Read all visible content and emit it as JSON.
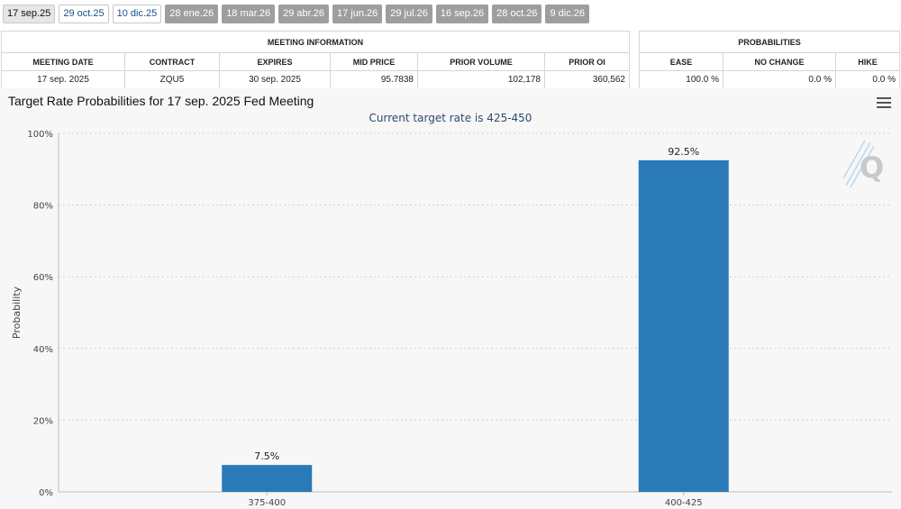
{
  "tabs": [
    {
      "label": "17 sep.25",
      "state": "active"
    },
    {
      "label": "29 oct.25",
      "state": "future"
    },
    {
      "label": "10 dic.25",
      "state": "future"
    },
    {
      "label": "28 ene.26",
      "state": "disabled"
    },
    {
      "label": "18 mar.26",
      "state": "disabled"
    },
    {
      "label": "29 abr.26",
      "state": "disabled"
    },
    {
      "label": "17 jun.26",
      "state": "disabled"
    },
    {
      "label": "29 jul.26",
      "state": "disabled"
    },
    {
      "label": "16 sep.26",
      "state": "disabled"
    },
    {
      "label": "28 oct.26",
      "state": "disabled"
    },
    {
      "label": "9 dic.26",
      "state": "disabled"
    }
  ],
  "meeting_info": {
    "title": "MEETING INFORMATION",
    "headers": [
      "MEETING DATE",
      "CONTRACT",
      "EXPIRES",
      "MID PRICE",
      "PRIOR VOLUME",
      "PRIOR OI"
    ],
    "row": [
      "17 sep. 2025",
      "ZQU5",
      "30 sep. 2025",
      "95.7838",
      "102,178",
      "360,562"
    ]
  },
  "probabilities": {
    "title": "PROBABILITIES",
    "headers": [
      "EASE",
      "NO CHANGE",
      "HIKE"
    ],
    "row": [
      "100.0 %",
      "0.0 %",
      "0.0 %"
    ]
  },
  "chart": {
    "title": "Target Rate Probabilities for 17 sep. 2025 Fed Meeting",
    "subtitle": "Current target rate is 425-450",
    "logo_letter": "Q"
  },
  "colors": {
    "bar": "#2a7ab7",
    "grid": "#d0d0d0",
    "tab_disabled": "#9e9e9e"
  },
  "chart_data": {
    "type": "bar",
    "categories": [
      "375-400",
      "400-425"
    ],
    "values": [
      7.5,
      92.5
    ],
    "data_labels": [
      "7.5%",
      "92.5%"
    ],
    "ylabel": "Probability",
    "ylim": [
      0,
      100
    ],
    "yticks": [
      "0%",
      "20%",
      "40%",
      "60%",
      "80%",
      "100%"
    ],
    "grid": true
  }
}
